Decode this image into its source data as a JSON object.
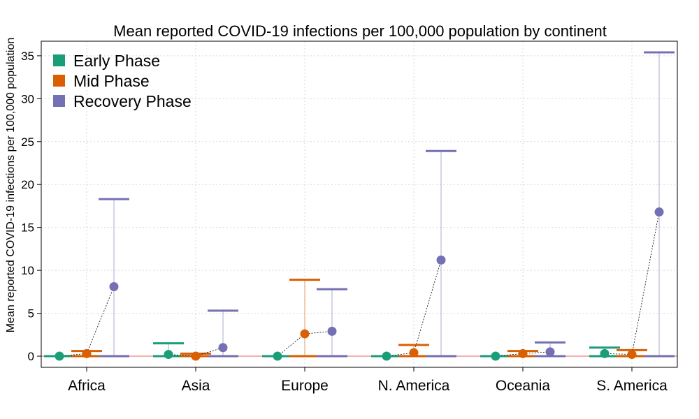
{
  "chart_data": {
    "type": "dot-errorbar",
    "title": "Mean reported COVID-19 infections per 100,000 population by continent",
    "xlabel": "",
    "ylabel": "Mean reported COVID-19 infections per 100,000 population",
    "ylim": [
      -1.3,
      36.7
    ],
    "yticks": [
      0,
      5,
      10,
      15,
      20,
      25,
      30,
      35
    ],
    "grid": true,
    "legend_position": "top-left",
    "reference_line": {
      "y": 0,
      "color": "#f08080"
    },
    "categories": [
      "Africa",
      "Asia",
      "Europe",
      "N. America",
      "Oceania",
      "S. America"
    ],
    "series": [
      {
        "name": "Early Phase",
        "color": "#1b9e77",
        "means": [
          0.0,
          0.2,
          0.0,
          0.0,
          0.0,
          0.3
        ],
        "lower": [
          0.0,
          0.0,
          0.0,
          0.0,
          0.0,
          0.0
        ],
        "upper": [
          0.0,
          1.5,
          0.0,
          0.0,
          0.0,
          1.0
        ]
      },
      {
        "name": "Mid Phase",
        "color": "#d95f02",
        "means": [
          0.3,
          0.0,
          2.6,
          0.4,
          0.3,
          0.2
        ],
        "lower": [
          0.0,
          0.0,
          0.0,
          0.0,
          0.0,
          0.0
        ],
        "upper": [
          0.6,
          0.3,
          8.9,
          1.3,
          0.6,
          0.7
        ]
      },
      {
        "name": "Recovery Phase",
        "color": "#7570b3",
        "means": [
          8.1,
          1.0,
          2.9,
          11.2,
          0.5,
          16.8
        ],
        "lower": [
          0.0,
          0.0,
          0.0,
          0.0,
          0.0,
          0.0
        ],
        "upper": [
          18.3,
          5.3,
          7.8,
          23.9,
          1.6,
          35.4
        ]
      }
    ]
  }
}
